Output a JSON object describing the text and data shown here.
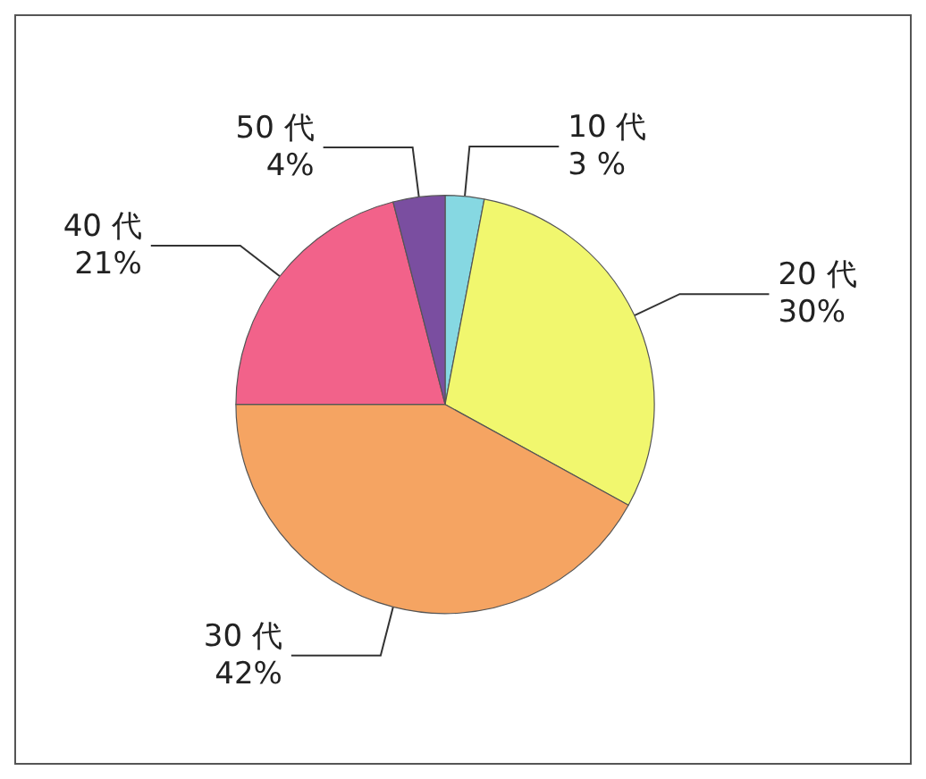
{
  "chart_data": {
    "type": "pie",
    "categories": [
      "10 代",
      "20 代",
      "30 代",
      "40 代",
      "50 代"
    ],
    "values": [
      3,
      30,
      42,
      21,
      4
    ],
    "colors": [
      "#86d8e2",
      "#f1f76e",
      "#f5a462",
      "#f2628a",
      "#7a4ea0"
    ],
    "value_labels": [
      "3 %",
      "30%",
      "42%",
      "21%",
      "4%"
    ]
  }
}
